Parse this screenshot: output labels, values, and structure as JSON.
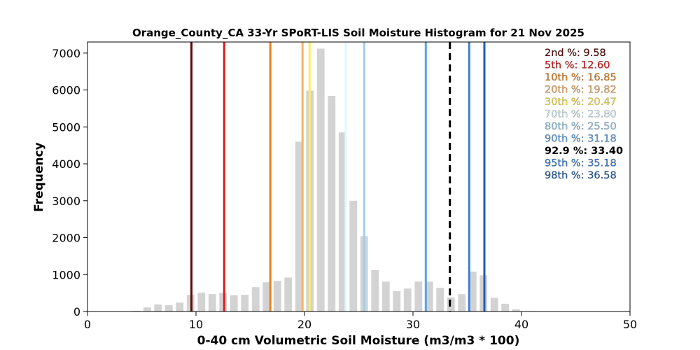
{
  "chart_data": {
    "type": "bar",
    "title": "Orange_County_CA 33-Yr SPoRT-LIS Soil Moisture Histogram for 21 Nov 2025",
    "xlabel": "0-40 cm Volumetric Soil Moisture (m3/m3 * 100)",
    "ylabel": "Frequency",
    "xlim": [
      0,
      50
    ],
    "ylim": [
      0,
      7300
    ],
    "xticks": [
      0,
      10,
      20,
      30,
      40,
      50
    ],
    "yticks": [
      0,
      1000,
      2000,
      3000,
      4000,
      5000,
      6000,
      7000
    ],
    "bar_color": "#d3d3d3",
    "bins": [
      {
        "x": 4.5,
        "value": 20
      },
      {
        "x": 5.5,
        "value": 110
      },
      {
        "x": 6.5,
        "value": 190
      },
      {
        "x": 7.5,
        "value": 170
      },
      {
        "x": 8.5,
        "value": 240
      },
      {
        "x": 9.5,
        "value": 450
      },
      {
        "x": 10.5,
        "value": 510
      },
      {
        "x": 11.5,
        "value": 470
      },
      {
        "x": 12.5,
        "value": 500
      },
      {
        "x": 13.5,
        "value": 440
      },
      {
        "x": 14.5,
        "value": 450
      },
      {
        "x": 15.5,
        "value": 660
      },
      {
        "x": 16.5,
        "value": 790
      },
      {
        "x": 17.5,
        "value": 830
      },
      {
        "x": 18.5,
        "value": 920
      },
      {
        "x": 19.5,
        "value": 4600
      },
      {
        "x": 20.5,
        "value": 5980
      },
      {
        "x": 21.5,
        "value": 7120
      },
      {
        "x": 22.5,
        "value": 5840
      },
      {
        "x": 23.5,
        "value": 4850
      },
      {
        "x": 24.5,
        "value": 3000
      },
      {
        "x": 25.5,
        "value": 2040
      },
      {
        "x": 26.5,
        "value": 1120
      },
      {
        "x": 27.5,
        "value": 810
      },
      {
        "x": 28.5,
        "value": 550
      },
      {
        "x": 29.5,
        "value": 620
      },
      {
        "x": 30.5,
        "value": 810
      },
      {
        "x": 31.5,
        "value": 810
      },
      {
        "x": 32.5,
        "value": 640
      },
      {
        "x": 33.5,
        "value": 380
      },
      {
        "x": 34.5,
        "value": 470
      },
      {
        "x": 35.5,
        "value": 1080
      },
      {
        "x": 36.5,
        "value": 980
      },
      {
        "x": 37.5,
        "value": 370
      },
      {
        "x": 38.5,
        "value": 210
      },
      {
        "x": 39.5,
        "value": 60
      },
      {
        "x": 40.5,
        "value": 10
      }
    ],
    "percentiles": [
      {
        "label": "2nd %",
        "value": 9.58,
        "color": "#5c0a0a",
        "text": "9.58",
        "dashed": false
      },
      {
        "label": "5th %",
        "value": 12.6,
        "color": "#e01b1b",
        "text": "12.60",
        "dashed": false
      },
      {
        "label": "10th %",
        "value": 16.85,
        "color": "#e8821e",
        "text": "16.85",
        "dashed": false
      },
      {
        "label": "20th %",
        "value": 19.82,
        "color": "#f5b26b",
        "text": "19.82",
        "dashed": false
      },
      {
        "label": "30th %",
        "value": 20.47,
        "color": "#ffee58",
        "text": "20.47",
        "dashed": false
      },
      {
        "label": "70th %",
        "value": 23.8,
        "color": "#e0f7ff",
        "text": "23.80",
        "dashed": false
      },
      {
        "label": "80th %",
        "value": 25.5,
        "color": "#9ecfef",
        "text": "25.50",
        "dashed": false
      },
      {
        "label": "90th %",
        "value": 31.18,
        "color": "#5ba3e6",
        "text": "31.18",
        "dashed": false
      },
      {
        "label": "92.9 %",
        "value": 33.4,
        "color": "#000000",
        "text": "33.40",
        "dashed": true
      },
      {
        "label": "95th %",
        "value": 35.18,
        "color": "#3a7fd9",
        "text": "35.18",
        "dashed": false
      },
      {
        "label": "98th %",
        "value": 36.58,
        "color": "#1f5fae",
        "text": "36.58",
        "dashed": false
      }
    ]
  }
}
